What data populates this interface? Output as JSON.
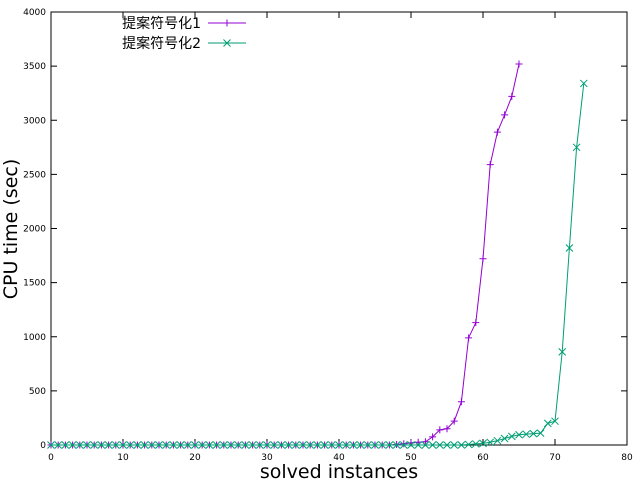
{
  "chart_data": {
    "type": "line",
    "xlabel": "solved instances",
    "ylabel": "CPU time (sec)",
    "xlim": [
      0,
      80
    ],
    "ylim": [
      0,
      4000
    ],
    "xticks": [
      "0",
      "10",
      "20",
      "30",
      "40",
      "50",
      "60",
      "70",
      "80"
    ],
    "yticks": [
      "0",
      "500",
      "1000",
      "1500",
      "2000",
      "2500",
      "3000",
      "3500",
      "4000"
    ],
    "grid": false,
    "legend_position": "top-left",
    "series": [
      {
        "name": "提案符号化1",
        "color": "#9400d3",
        "marker": "plus",
        "points": [
          [
            0,
            0
          ],
          [
            1,
            0
          ],
          [
            2,
            0
          ],
          [
            3,
            0
          ],
          [
            4,
            0
          ],
          [
            5,
            0
          ],
          [
            6,
            0
          ],
          [
            7,
            0
          ],
          [
            8,
            0
          ],
          [
            9,
            0
          ],
          [
            10,
            0
          ],
          [
            11,
            0
          ],
          [
            12,
            0
          ],
          [
            13,
            0
          ],
          [
            14,
            0
          ],
          [
            15,
            0
          ],
          [
            16,
            0
          ],
          [
            17,
            0
          ],
          [
            18,
            0
          ],
          [
            19,
            0
          ],
          [
            20,
            0
          ],
          [
            21,
            0
          ],
          [
            22,
            0
          ],
          [
            23,
            0
          ],
          [
            24,
            0
          ],
          [
            25,
            0
          ],
          [
            26,
            0
          ],
          [
            27,
            0
          ],
          [
            28,
            0
          ],
          [
            29,
            0
          ],
          [
            30,
            0
          ],
          [
            31,
            0
          ],
          [
            32,
            0
          ],
          [
            33,
            0
          ],
          [
            34,
            0
          ],
          [
            35,
            0
          ],
          [
            36,
            0
          ],
          [
            37,
            0
          ],
          [
            38,
            0
          ],
          [
            39,
            0
          ],
          [
            40,
            0
          ],
          [
            41,
            0
          ],
          [
            42,
            0
          ],
          [
            43,
            0
          ],
          [
            44,
            0
          ],
          [
            45,
            0
          ],
          [
            46,
            0
          ],
          [
            47,
            0
          ],
          [
            48,
            5
          ],
          [
            49,
            12
          ],
          [
            50,
            20
          ],
          [
            51,
            25
          ],
          [
            52,
            30
          ],
          [
            53,
            75
          ],
          [
            54,
            140
          ],
          [
            55,
            150
          ],
          [
            56,
            220
          ],
          [
            57,
            400
          ],
          [
            58,
            990
          ],
          [
            59,
            1130
          ],
          [
            60,
            1720
          ],
          [
            61,
            2590
          ],
          [
            62,
            2890
          ],
          [
            63,
            3050
          ],
          [
            64,
            3220
          ],
          [
            65,
            3520
          ]
        ]
      },
      {
        "name": "提案符号化2",
        "color": "#009e73",
        "marker": "cross",
        "points": [
          [
            0,
            0
          ],
          [
            1,
            0
          ],
          [
            2,
            0
          ],
          [
            3,
            0
          ],
          [
            4,
            0
          ],
          [
            5,
            0
          ],
          [
            6,
            0
          ],
          [
            7,
            0
          ],
          [
            8,
            0
          ],
          [
            9,
            0
          ],
          [
            10,
            0
          ],
          [
            11,
            0
          ],
          [
            12,
            0
          ],
          [
            13,
            0
          ],
          [
            14,
            0
          ],
          [
            15,
            0
          ],
          [
            16,
            0
          ],
          [
            17,
            0
          ],
          [
            18,
            0
          ],
          [
            19,
            0
          ],
          [
            20,
            0
          ],
          [
            21,
            0
          ],
          [
            22,
            0
          ],
          [
            23,
            0
          ],
          [
            24,
            0
          ],
          [
            25,
            0
          ],
          [
            26,
            0
          ],
          [
            27,
            0
          ],
          [
            28,
            0
          ],
          [
            29,
            0
          ],
          [
            30,
            0
          ],
          [
            31,
            0
          ],
          [
            32,
            0
          ],
          [
            33,
            0
          ],
          [
            34,
            0
          ],
          [
            35,
            0
          ],
          [
            36,
            0
          ],
          [
            37,
            0
          ],
          [
            38,
            0
          ],
          [
            39,
            0
          ],
          [
            40,
            0
          ],
          [
            41,
            0
          ],
          [
            42,
            0
          ],
          [
            43,
            0
          ],
          [
            44,
            0
          ],
          [
            45,
            0
          ],
          [
            46,
            0
          ],
          [
            47,
            0
          ],
          [
            48,
            0
          ],
          [
            49,
            0
          ],
          [
            50,
            0
          ],
          [
            51,
            0
          ],
          [
            52,
            0
          ],
          [
            53,
            0
          ],
          [
            54,
            0
          ],
          [
            55,
            0
          ],
          [
            56,
            0
          ],
          [
            57,
            0
          ],
          [
            58,
            5
          ],
          [
            59,
            10
          ],
          [
            60,
            15
          ],
          [
            61,
            25
          ],
          [
            62,
            40
          ],
          [
            63,
            60
          ],
          [
            64,
            80
          ],
          [
            65,
            95
          ],
          [
            66,
            100
          ],
          [
            67,
            105
          ],
          [
            68,
            110
          ],
          [
            69,
            200
          ],
          [
            70,
            220
          ],
          [
            71,
            860
          ],
          [
            72,
            1820
          ],
          [
            73,
            2750
          ],
          [
            74,
            3340
          ]
        ]
      }
    ]
  }
}
